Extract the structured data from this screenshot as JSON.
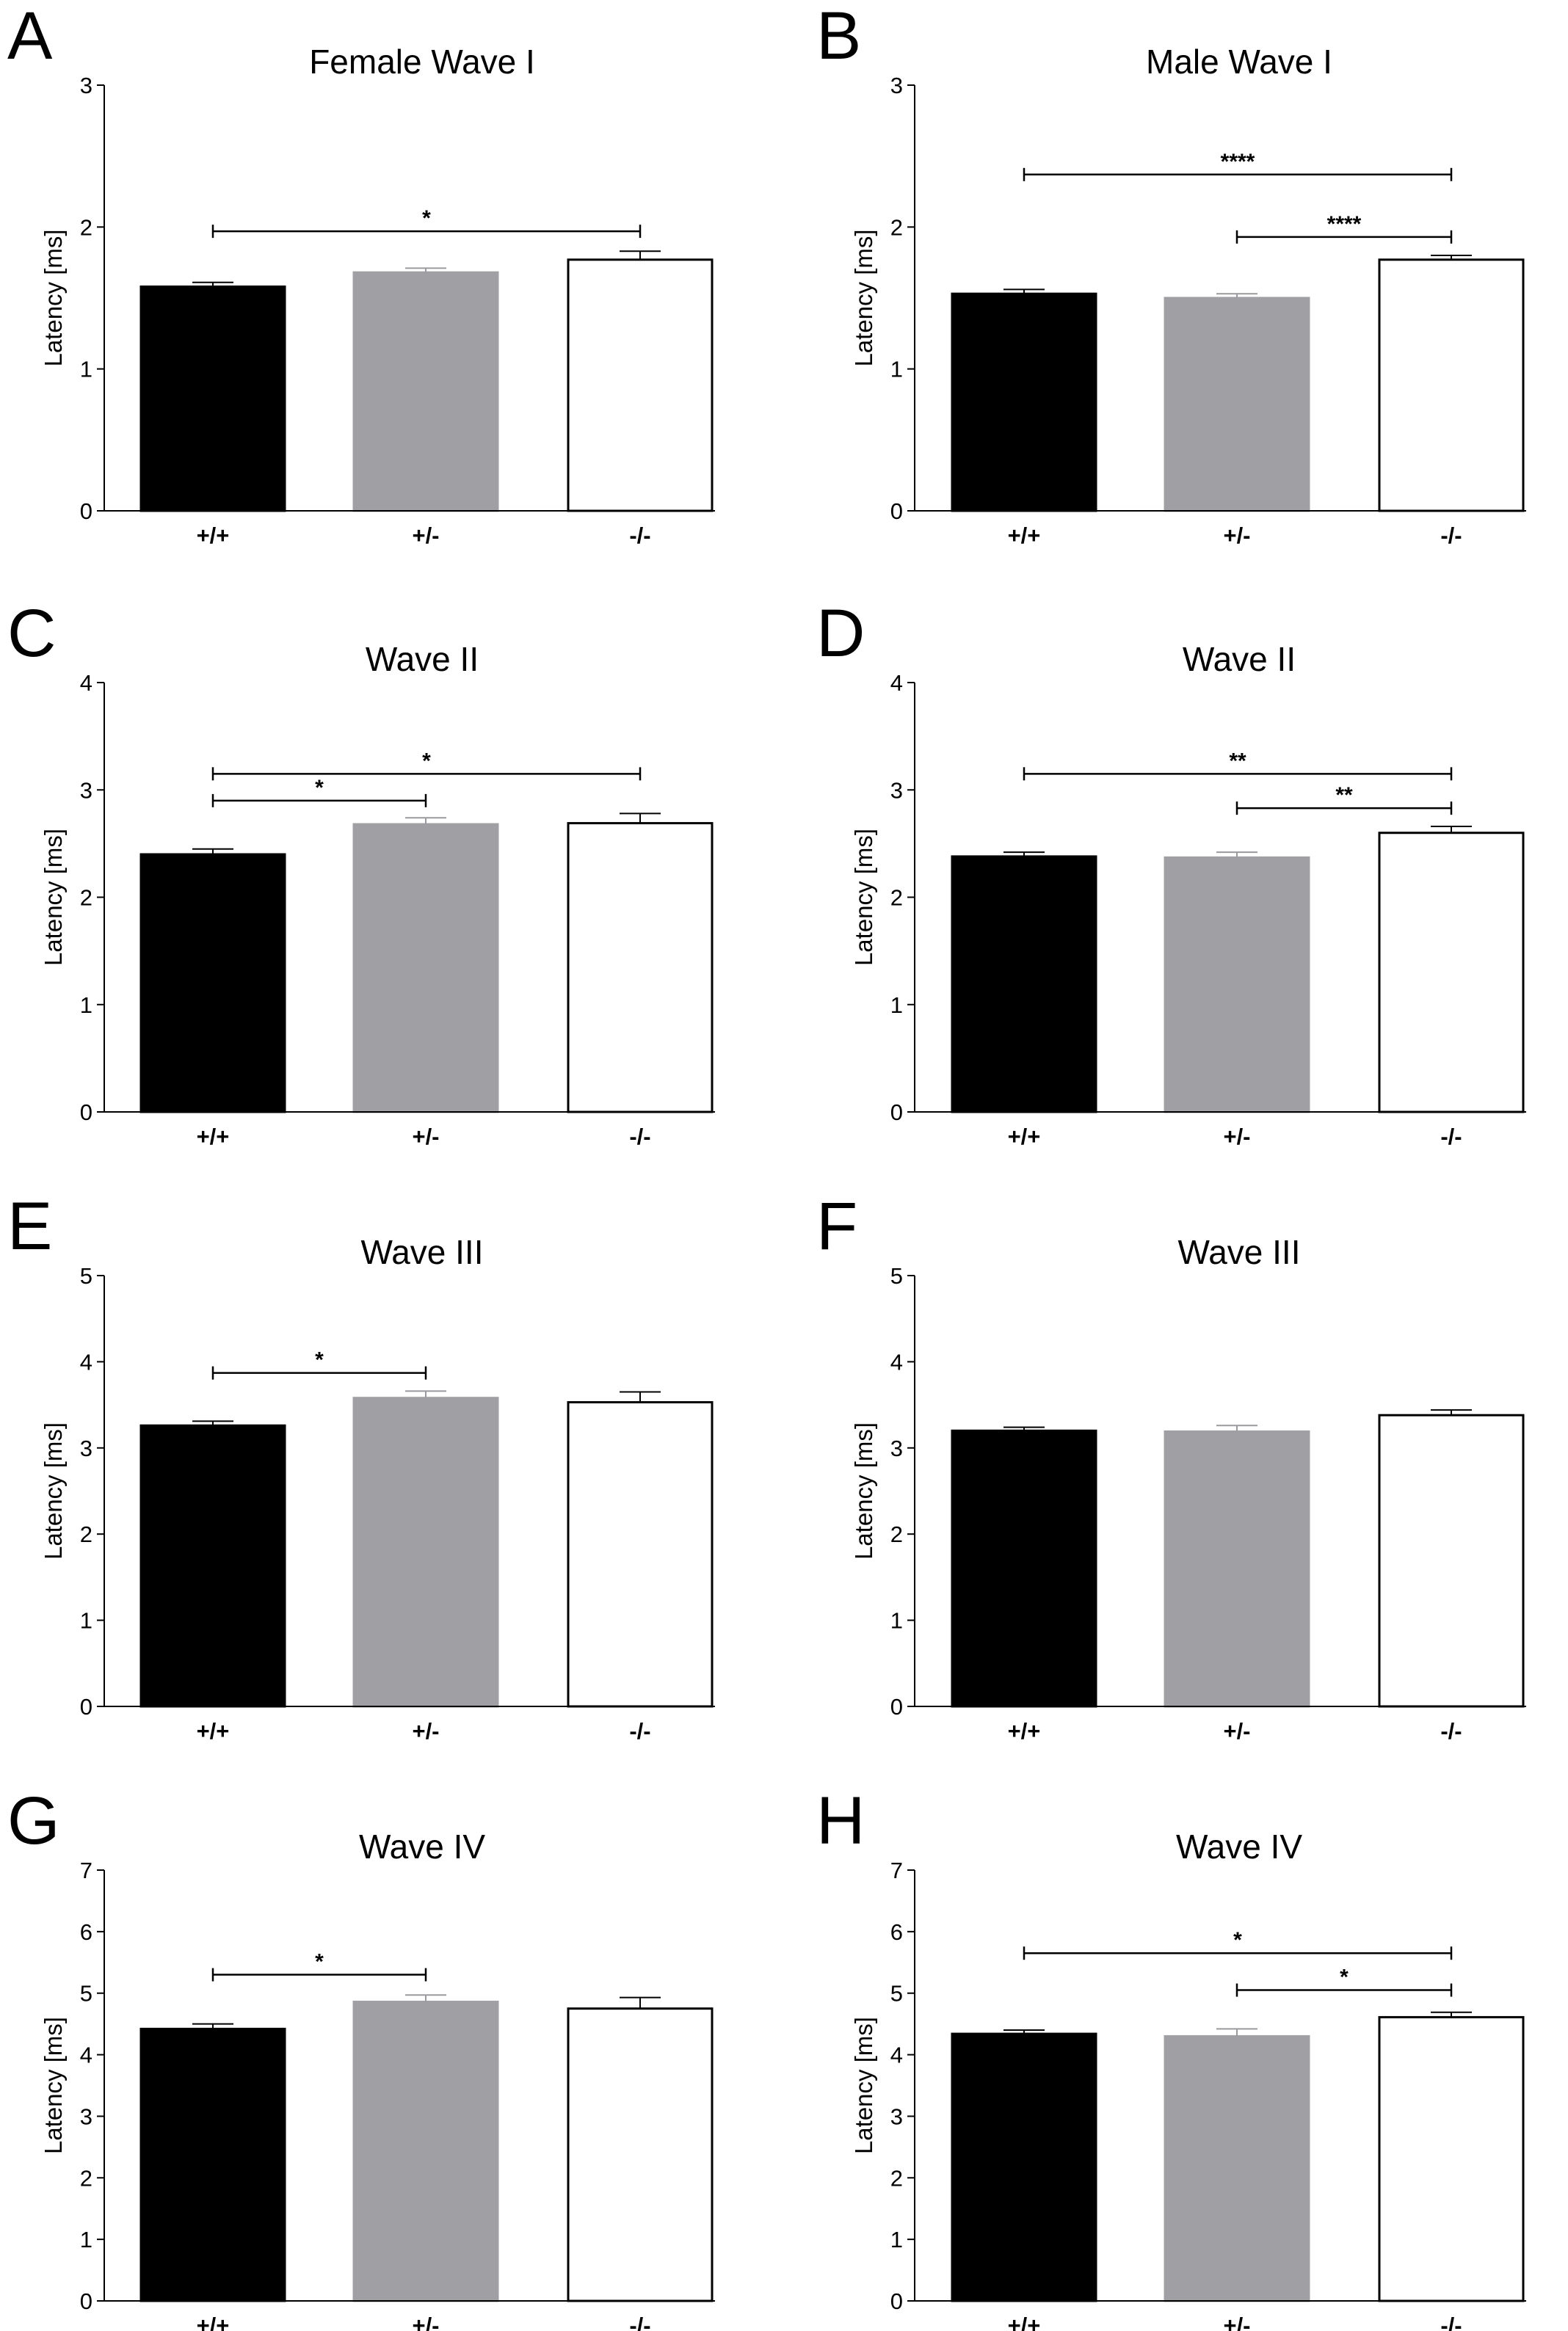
{
  "figure": {
    "bar_colors": [
      "#000000",
      "#a0a0a4",
      "#ffffff"
    ],
    "axis_color": "#000000"
  },
  "chart_data": [
    {
      "panel": "A",
      "type": "bar",
      "title": "Female Wave I",
      "ylabel": "Latency [ms]",
      "xlabel": "",
      "categories": [
        "+/+",
        "+/-",
        "-/-"
      ],
      "values": [
        1.58,
        1.68,
        1.77
      ],
      "errors": [
        0.03,
        0.03,
        0.06
      ],
      "ylim": [
        0,
        3
      ],
      "yticks": [
        "0",
        "1",
        "2",
        "3"
      ],
      "significance": [
        {
          "from": 0,
          "to": 2,
          "level": 1.97,
          "label": "*"
        }
      ]
    },
    {
      "panel": "B",
      "type": "bar",
      "title": "Male Wave I",
      "ylabel": "Latency [ms]",
      "xlabel": "",
      "categories": [
        "+/+",
        "+/-",
        "-/-"
      ],
      "values": [
        1.53,
        1.5,
        1.77
      ],
      "errors": [
        0.03,
        0.03,
        0.03
      ],
      "ylim": [
        0,
        3
      ],
      "yticks": [
        "0",
        "1",
        "2",
        "3"
      ],
      "significance": [
        {
          "from": 0,
          "to": 2,
          "level": 2.37,
          "label": "****"
        },
        {
          "from": 1,
          "to": 2,
          "level": 1.93,
          "label": "****"
        }
      ]
    },
    {
      "panel": "C",
      "type": "bar",
      "title": "Wave II",
      "ylabel": "Latency [ms]",
      "xlabel": "",
      "categories": [
        "+/+",
        "+/-",
        "-/-"
      ],
      "values": [
        2.4,
        2.68,
        2.69
      ],
      "errors": [
        0.05,
        0.06,
        0.09
      ],
      "ylim": [
        0,
        4
      ],
      "yticks": [
        "0",
        "1",
        "2",
        "3",
        "4"
      ],
      "significance": [
        {
          "from": 0,
          "to": 2,
          "level": 3.15,
          "label": "*"
        },
        {
          "from": 0,
          "to": 1,
          "level": 2.9,
          "label": "*"
        }
      ]
    },
    {
      "panel": "D",
      "type": "bar",
      "title": "Wave II",
      "ylabel": "Latency [ms]",
      "xlabel": "",
      "categories": [
        "+/+",
        "+/-",
        "-/-"
      ],
      "values": [
        2.38,
        2.37,
        2.6
      ],
      "errors": [
        0.04,
        0.05,
        0.06
      ],
      "ylim": [
        0,
        4
      ],
      "yticks": [
        "0",
        "1",
        "2",
        "3",
        "4"
      ],
      "significance": [
        {
          "from": 0,
          "to": 2,
          "level": 3.15,
          "label": "**"
        },
        {
          "from": 1,
          "to": 2,
          "level": 2.83,
          "label": "**"
        }
      ]
    },
    {
      "panel": "E",
      "type": "bar",
      "title": "Wave III",
      "ylabel": "Latency [ms]",
      "xlabel": "",
      "categories": [
        "+/+",
        "+/-",
        "-/-"
      ],
      "values": [
        3.26,
        3.58,
        3.53
      ],
      "errors": [
        0.05,
        0.08,
        0.12
      ],
      "ylim": [
        0,
        5
      ],
      "yticks": [
        "0",
        "1",
        "2",
        "3",
        "4",
        "5"
      ],
      "significance": [
        {
          "from": 0,
          "to": 1,
          "level": 3.87,
          "label": "*"
        }
      ]
    },
    {
      "panel": "F",
      "type": "bar",
      "title": "Wave III",
      "ylabel": "Latency [ms]",
      "xlabel": "",
      "categories": [
        "+/+",
        "+/-",
        "-/-"
      ],
      "values": [
        3.2,
        3.19,
        3.38
      ],
      "errors": [
        0.04,
        0.07,
        0.06
      ],
      "ylim": [
        0,
        5
      ],
      "yticks": [
        "0",
        "1",
        "2",
        "3",
        "4",
        "5"
      ],
      "significance": []
    },
    {
      "panel": "G",
      "type": "bar",
      "title": "Wave IV",
      "ylabel": "Latency [ms]",
      "xlabel": "",
      "categories": [
        "+/+",
        "+/-",
        "-/-"
      ],
      "values": [
        4.42,
        4.86,
        4.75
      ],
      "errors": [
        0.08,
        0.11,
        0.18
      ],
      "ylim": [
        0,
        7
      ],
      "yticks": [
        "0",
        "1",
        "2",
        "3",
        "4",
        "5",
        "6",
        "7"
      ],
      "significance": [
        {
          "from": 0,
          "to": 1,
          "level": 5.3,
          "label": "*"
        }
      ]
    },
    {
      "panel": "H",
      "type": "bar",
      "title": "Wave IV",
      "ylabel": "Latency [ms]",
      "xlabel": "",
      "categories": [
        "+/+",
        "+/-",
        "-/-"
      ],
      "values": [
        4.34,
        4.3,
        4.61
      ],
      "errors": [
        0.06,
        0.12,
        0.08
      ],
      "ylim": [
        0,
        7
      ],
      "yticks": [
        "0",
        "1",
        "2",
        "3",
        "4",
        "5",
        "6",
        "7"
      ],
      "significance": [
        {
          "from": 0,
          "to": 2,
          "level": 5.65,
          "label": "*"
        },
        {
          "from": 1,
          "to": 2,
          "level": 5.05,
          "label": "*"
        }
      ]
    }
  ]
}
